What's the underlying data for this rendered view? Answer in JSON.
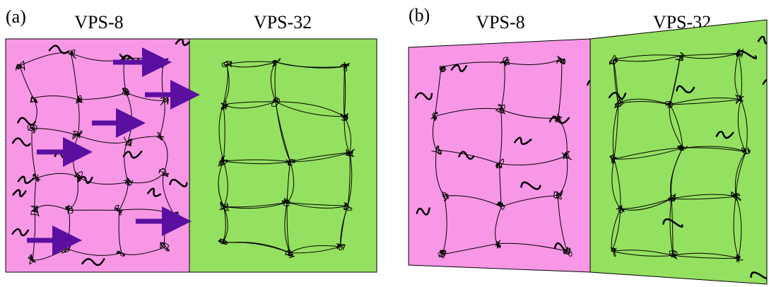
{
  "panels": [
    {
      "label": "(a)",
      "regions": [
        {
          "label": "VPS-8"
        },
        {
          "label": "VPS-32"
        }
      ]
    },
    {
      "label": "(b)",
      "regions": [
        {
          "label": "VPS-8"
        },
        {
          "label": "VPS-32"
        }
      ]
    }
  ]
}
